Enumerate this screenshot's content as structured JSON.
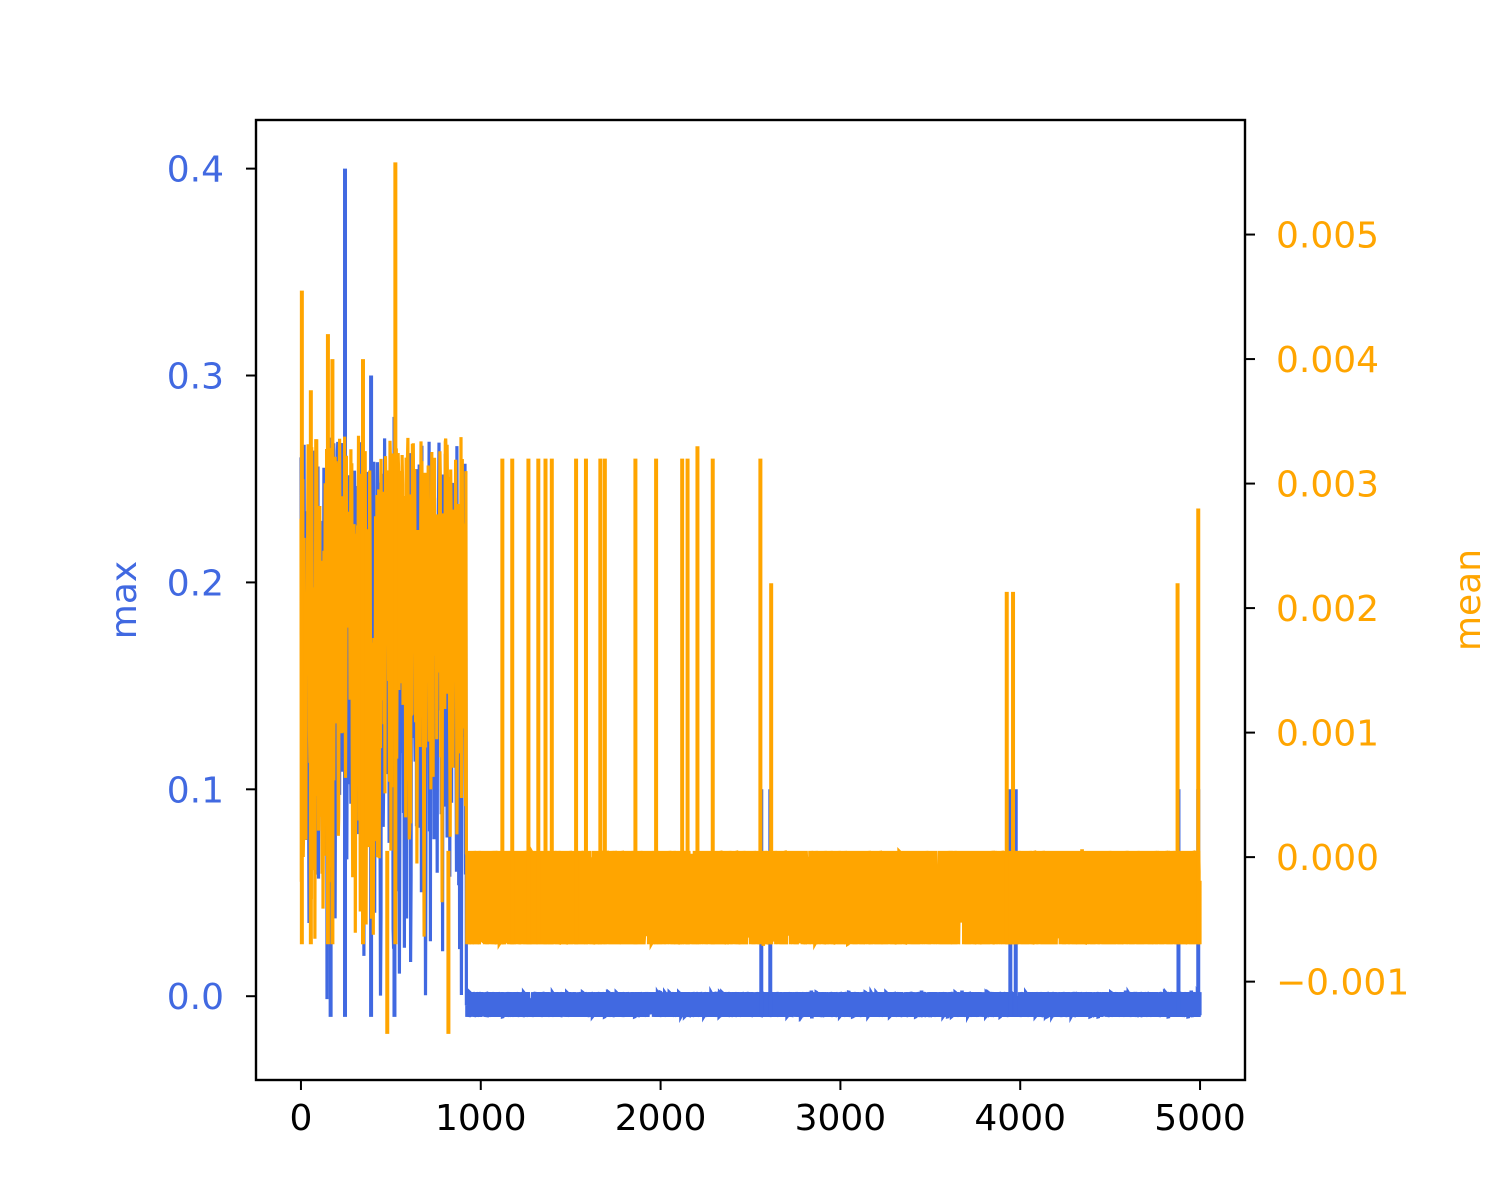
{
  "chart_data": {
    "type": "line",
    "title": "",
    "xlabel": "",
    "ylabel_left": "max",
    "ylabel_right": "mean",
    "xlim": [
      -250,
      5250
    ],
    "ylim_left": [
      -0.0405,
      0.4235
    ],
    "ylim_right": [
      -0.00179,
      0.00592
    ],
    "x_ticks": [
      0,
      1000,
      2000,
      3000,
      4000,
      5000
    ],
    "x_tick_labels": [
      "0",
      "1000",
      "2000",
      "3000",
      "4000",
      "5000"
    ],
    "y_left_ticks": [
      0.0,
      0.1,
      0.2,
      0.3,
      0.4
    ],
    "y_left_tick_labels": [
      "0.0",
      "0.1",
      "0.2",
      "0.3",
      "0.4"
    ],
    "y_right_ticks": [
      -0.001,
      0.0,
      0.001,
      0.002,
      0.003,
      0.004,
      0.005
    ],
    "y_right_tick_labels": [
      "−0.001",
      "0.000",
      "0.001",
      "0.002",
      "0.003",
      "0.004",
      "0.005"
    ],
    "grid": false,
    "legend": "none",
    "colors": {
      "max": "#4169e1",
      "mean": "#ffa500",
      "axes": "#000000"
    },
    "series": [
      {
        "name": "max",
        "axis": "left",
        "color": "#4169e1",
        "x_range": [
          0,
          5000
        ],
        "baseline_band": [
          -0.01,
          0.002
        ],
        "dense_region_end": 920,
        "dense_band": [
          -0.01,
          0.27
        ],
        "spikes": [
          {
            "x": 245,
            "y": 0.4
          },
          {
            "x": 390,
            "y": 0.3
          },
          {
            "x": 165,
            "y": 0.27
          },
          {
            "x": 520,
            "y": 0.28
          },
          {
            "x": 2560,
            "y": 0.1
          },
          {
            "x": 2610,
            "y": 0.1
          },
          {
            "x": 3945,
            "y": 0.1
          },
          {
            "x": 3975,
            "y": 0.1
          },
          {
            "x": 4880,
            "y": 0.1
          },
          {
            "x": 4990,
            "y": 0.1
          }
        ]
      },
      {
        "name": "mean",
        "axis": "right",
        "color": "#ffa500",
        "x_range": [
          0,
          5000
        ],
        "baseline_band": [
          -0.0007,
          5e-05
        ],
        "dense_region_end": 920,
        "dense_band": [
          -0.0008,
          0.0034
        ],
        "spikes": [
          {
            "x": 5,
            "y": 0.00455
          },
          {
            "x": 55,
            "y": 0.00375
          },
          {
            "x": 150,
            "y": 0.0042
          },
          {
            "x": 175,
            "y": 0.004
          },
          {
            "x": 345,
            "y": 0.004
          },
          {
            "x": 525,
            "y": 0.00558
          },
          {
            "x": 480,
            "y": -0.00142
          },
          {
            "x": 820,
            "y": -0.00142
          },
          {
            "x": 1120,
            "y": 0.0032
          },
          {
            "x": 1175,
            "y": 0.0032
          },
          {
            "x": 1265,
            "y": 0.0032
          },
          {
            "x": 1320,
            "y": 0.0032
          },
          {
            "x": 1360,
            "y": 0.0032
          },
          {
            "x": 1395,
            "y": 0.0032
          },
          {
            "x": 1530,
            "y": 0.0032
          },
          {
            "x": 1585,
            "y": 0.0032
          },
          {
            "x": 1665,
            "y": 0.0032
          },
          {
            "x": 1690,
            "y": 0.0032
          },
          {
            "x": 1860,
            "y": 0.0032
          },
          {
            "x": 1975,
            "y": 0.0032
          },
          {
            "x": 2120,
            "y": 0.0032
          },
          {
            "x": 2150,
            "y": 0.0032
          },
          {
            "x": 2205,
            "y": 0.0033
          },
          {
            "x": 2290,
            "y": 0.0032
          },
          {
            "x": 2555,
            "y": 0.0032
          },
          {
            "x": 2615,
            "y": 0.0022
          },
          {
            "x": 3925,
            "y": 0.00213
          },
          {
            "x": 3960,
            "y": 0.00213
          },
          {
            "x": 4875,
            "y": 0.0022
          },
          {
            "x": 4990,
            "y": 0.0028
          }
        ]
      }
    ]
  }
}
